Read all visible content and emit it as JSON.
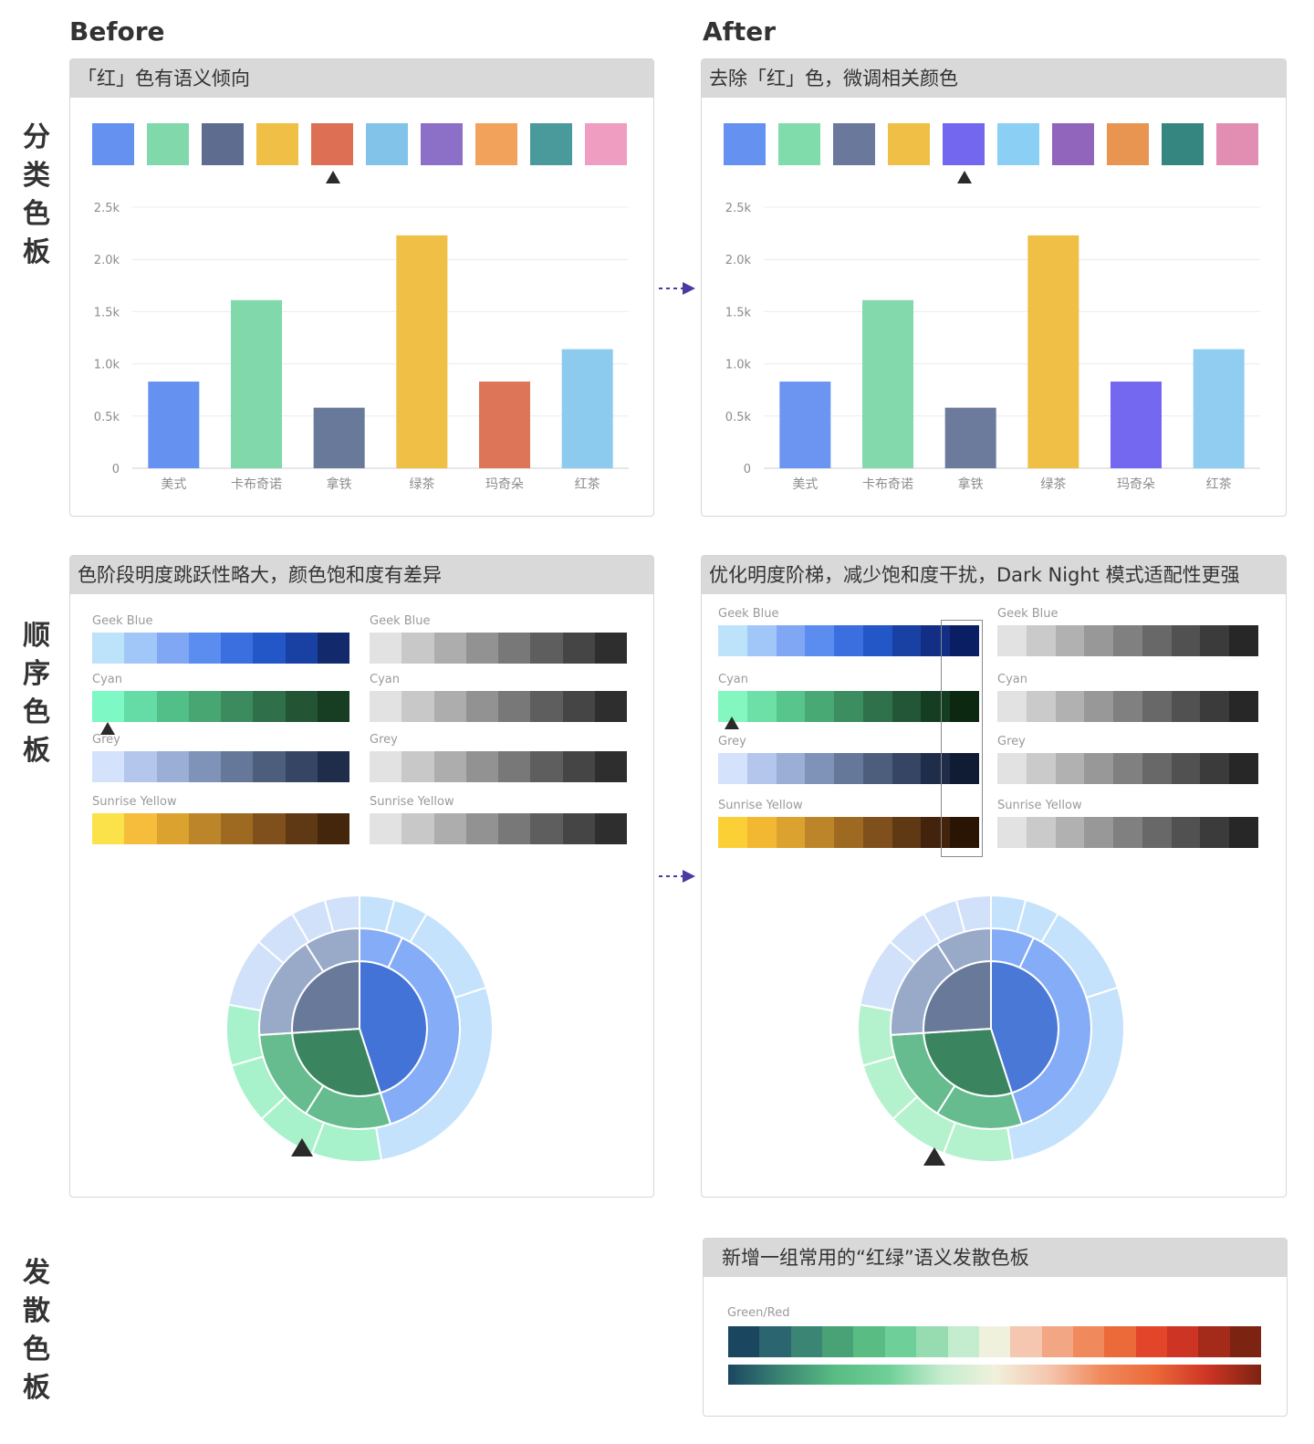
{
  "columns": {
    "before": "Before",
    "after": "After"
  },
  "rows": {
    "categorical": "分类色板",
    "sequential": "顺序色板",
    "diverging": "发散色板"
  },
  "panels": {
    "cat_before": {
      "title": "「红」色有语义倾向"
    },
    "cat_after": {
      "title": "去除「红」色，微调相关颜色"
    },
    "seq_before": {
      "title": "色阶段明度跳跃性略大，颜色饱和度有差异"
    },
    "seq_after": {
      "title": "优化明度阶梯，减少饱和度干扰，Dark Night 模式适配性更强"
    },
    "div_after": {
      "title": "新增一组常用的“红绿”语义发散色板"
    }
  },
  "palettes": {
    "before": [
      "#6591f0",
      "#81d8ab",
      "#5e6c8f",
      "#efbf46",
      "#dd7054",
      "#82c3ea",
      "#8c6fc7",
      "#f3a25c",
      "#4a9a9b",
      "#f09dc2"
    ],
    "after": [
      "#6591f0",
      "#81dcab",
      "#6a789b",
      "#efbf46",
      "#7367f0",
      "#8ccff4",
      "#9165bb",
      "#e99552",
      "#358680",
      "#e28eb3"
    ]
  },
  "chart_data": [
    {
      "type": "bar",
      "panel": "before",
      "categories": [
        "美式",
        "卡布奇诺",
        "拿铁",
        "绿茶",
        "玛奇朵",
        "红茶"
      ],
      "values": [
        830,
        1610,
        580,
        2230,
        830,
        1140
      ],
      "colors": [
        "#6591f0",
        "#81d8ab",
        "#68799a",
        "#efbf46",
        "#dd7558",
        "#8ccaee"
      ],
      "yticks": [
        "0",
        "0.5k",
        "1.0k",
        "1.5k",
        "2.0k",
        "2.5k"
      ],
      "ylim": [
        0,
        2500
      ]
    },
    {
      "type": "bar",
      "panel": "after",
      "categories": [
        "美式",
        "卡布奇诺",
        "拿铁",
        "绿茶",
        "玛奇朵",
        "红茶"
      ],
      "values": [
        830,
        1610,
        580,
        2230,
        830,
        1140
      ],
      "colors": [
        "#6b95f0",
        "#83d9ab",
        "#6c7a9c",
        "#efbf46",
        "#7468f0",
        "#90cdf1"
      ],
      "yticks": [
        "0",
        "0.5k",
        "1.0k",
        "1.5k",
        "2.0k",
        "2.5k"
      ],
      "ylim": [
        0,
        2500
      ]
    },
    {
      "type": "pie",
      "subtype": "sunburst",
      "panel": "before",
      "rings": [
        {
          "level": 1,
          "segments": [
            {
              "value": 45,
              "color": "#4373d6"
            },
            {
              "value": 29,
              "color": "#3a8560"
            },
            {
              "value": 26,
              "color": "#68799a"
            }
          ]
        },
        {
          "level": 2,
          "segments": [
            {
              "value": 7,
              "color": "#85acf6"
            },
            {
              "value": 38,
              "color": "#85acf6"
            },
            {
              "value": 14,
              "color": "#67bc8f"
            },
            {
              "value": 15,
              "color": "#67bc8f"
            },
            {
              "value": 17,
              "color": "#98aac8"
            },
            {
              "value": 9,
              "color": "#98aac8"
            }
          ]
        },
        {
          "level": 3,
          "segments": [
            {
              "value": 4,
              "color": "#c4e2fb"
            },
            {
              "value": 4,
              "color": "#c4e2fb"
            },
            {
              "value": 11,
              "color": "#c4e2fb"
            },
            {
              "value": 26,
              "color": "#c4e2fb"
            },
            {
              "value": 8,
              "color": "#a7f2cb"
            },
            {
              "value": 7,
              "color": "#a7f2cb"
            },
            {
              "value": 7,
              "color": "#a7f2cb"
            },
            {
              "value": 7,
              "color": "#a7f2cb"
            },
            {
              "value": 8,
              "color": "#d1e1fa"
            },
            {
              "value": 5,
              "color": "#d1e1fa"
            },
            {
              "value": 4,
              "color": "#d1e1fa"
            },
            {
              "value": 4,
              "color": "#d1e1fa"
            }
          ]
        }
      ]
    },
    {
      "type": "pie",
      "subtype": "sunburst",
      "panel": "after",
      "rings": [
        {
          "level": 1,
          "segments": [
            {
              "value": 45,
              "color": "#4a78d6"
            },
            {
              "value": 29,
              "color": "#3a8560"
            },
            {
              "value": 26,
              "color": "#68799a"
            }
          ]
        },
        {
          "level": 2,
          "segments": [
            {
              "value": 7,
              "color": "#85acf6"
            },
            {
              "value": 38,
              "color": "#85acf6"
            },
            {
              "value": 14,
              "color": "#67bc8f"
            },
            {
              "value": 15,
              "color": "#67bc8f"
            },
            {
              "value": 17,
              "color": "#98aac8"
            },
            {
              "value": 9,
              "color": "#98aac8"
            }
          ]
        },
        {
          "level": 3,
          "segments": [
            {
              "value": 4,
              "color": "#c4e2fb"
            },
            {
              "value": 4,
              "color": "#c4e2fb"
            },
            {
              "value": 11,
              "color": "#c4e2fb"
            },
            {
              "value": 26,
              "color": "#c4e2fb"
            },
            {
              "value": 8,
              "color": "#b4f2cd"
            },
            {
              "value": 7,
              "color": "#b4f2cd"
            },
            {
              "value": 7,
              "color": "#b4f2cd"
            },
            {
              "value": 7,
              "color": "#b4f2cd"
            },
            {
              "value": 8,
              "color": "#d1e1fa"
            },
            {
              "value": 5,
              "color": "#d1e1fa"
            },
            {
              "value": 4,
              "color": "#d1e1fa"
            },
            {
              "value": 4,
              "color": "#d1e1fa"
            }
          ]
        }
      ]
    }
  ],
  "ramps": {
    "before": {
      "color": [
        {
          "label": "Geek Blue",
          "colors": [
            "#bde3fb",
            "#a1c7f8",
            "#80a7f4",
            "#5b8cf0",
            "#3b6fe0",
            "#2356c6",
            "#1941a3",
            "#122a6b"
          ]
        },
        {
          "label": "Cyan",
          "colors": [
            "#7ef8c5",
            "#65dca6",
            "#51bf87",
            "#48a673",
            "#3c8b5f",
            "#2f6f49",
            "#235433",
            "#173d22"
          ]
        },
        {
          "label": "Grey",
          "colors": [
            "#d4e3fb",
            "#b5c6ec",
            "#9aaed6",
            "#7f92b7",
            "#667899",
            "#4d5e7d",
            "#354563",
            "#1f2c4a"
          ]
        },
        {
          "label": "Sunrise Yellow",
          "colors": [
            "#fbe14a",
            "#f5bd3b",
            "#dba230",
            "#bd852a",
            "#9e6a22",
            "#7f501b",
            "#5f3913",
            "#43260b"
          ]
        }
      ],
      "grey": [
        {
          "label": "Geek Blue",
          "colors": [
            "#e2e2e2",
            "#c8c8c8",
            "#adadad",
            "#929292",
            "#787878",
            "#5e5e5e",
            "#454545",
            "#2e2e2e"
          ]
        },
        {
          "label": "Cyan",
          "colors": [
            "#e2e2e2",
            "#c8c8c8",
            "#adadad",
            "#929292",
            "#787878",
            "#5e5e5e",
            "#454545",
            "#2e2e2e"
          ]
        },
        {
          "label": "Grey",
          "colors": [
            "#e2e2e2",
            "#c8c8c8",
            "#adadad",
            "#929292",
            "#787878",
            "#5e5e5e",
            "#454545",
            "#2e2e2e"
          ]
        },
        {
          "label": "Sunrise Yellow",
          "colors": [
            "#e2e2e2",
            "#c8c8c8",
            "#adadad",
            "#929292",
            "#787878",
            "#5e5e5e",
            "#454545",
            "#2e2e2e"
          ]
        }
      ]
    },
    "after": {
      "color": [
        {
          "label": "Geek Blue",
          "colors": [
            "#bde3fb",
            "#a1c7f8",
            "#80a7f4",
            "#5b8cf0",
            "#3b6fe0",
            "#2356c6",
            "#1941a3",
            "#122f85",
            "#0a1f63"
          ]
        },
        {
          "label": "Cyan",
          "colors": [
            "#84f7c0",
            "#6ce0a6",
            "#57c58c",
            "#48a974",
            "#3c8d5f",
            "#2f714b",
            "#235637",
            "#153d22",
            "#0c2810"
          ]
        },
        {
          "label": "Grey",
          "colors": [
            "#d4e3fb",
            "#b5c6ec",
            "#9aaed6",
            "#7f92b7",
            "#667899",
            "#4d5e7d",
            "#354563",
            "#1f2c4a",
            "#101c34"
          ]
        },
        {
          "label": "Sunrise Yellow",
          "colors": [
            "#fbd036",
            "#f3b832",
            "#dba230",
            "#bd852a",
            "#9e6a22",
            "#7f501b",
            "#5f3913",
            "#43230b",
            "#2a1404"
          ]
        }
      ],
      "grey": [
        {
          "label": "Geek Blue",
          "colors": [
            "#e2e2e2",
            "#cacaca",
            "#b1b1b1",
            "#989898",
            "#808080",
            "#686868",
            "#515151",
            "#3b3b3b",
            "#272727"
          ]
        },
        {
          "label": "Cyan",
          "colors": [
            "#e2e2e2",
            "#cacaca",
            "#b1b1b1",
            "#989898",
            "#808080",
            "#686868",
            "#515151",
            "#3b3b3b",
            "#272727"
          ]
        },
        {
          "label": "Grey",
          "colors": [
            "#e2e2e2",
            "#cacaca",
            "#b1b1b1",
            "#989898",
            "#808080",
            "#686868",
            "#515151",
            "#3b3b3b",
            "#272727"
          ]
        },
        {
          "label": "Sunrise Yellow",
          "colors": [
            "#e2e2e2",
            "#cacaca",
            "#b1b1b1",
            "#989898",
            "#808080",
            "#686868",
            "#515151",
            "#3b3b3b",
            "#272727"
          ]
        }
      ]
    }
  },
  "diverging": {
    "label": "Green/Red",
    "colors": [
      "#1b4660",
      "#2b6570",
      "#3b8574",
      "#48a276",
      "#58bc83",
      "#6fcf98",
      "#97dbb1",
      "#c4ecce",
      "#f0f1dc",
      "#f5c7b0",
      "#f3a683",
      "#f08a5c",
      "#ec6939",
      "#e3452b",
      "#cd3424",
      "#a42a1a",
      "#7c2312"
    ],
    "gradient": [
      "#1b4660",
      "#3b8574",
      "#58bc83",
      "#6fcf98",
      "#c4ecce",
      "#f0f1dc",
      "#f5c7b0",
      "#f08a5c",
      "#ec6939",
      "#cd3424",
      "#7c2312"
    ]
  }
}
